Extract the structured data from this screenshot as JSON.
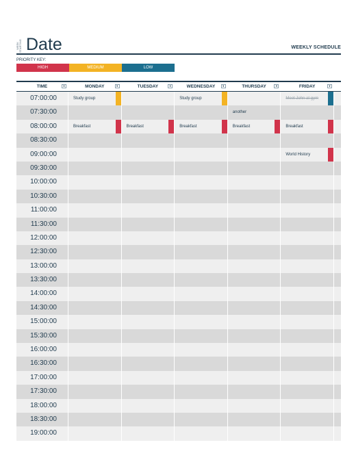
{
  "header": {
    "week_starting": "WEEK STARTING",
    "date_title": "Date",
    "weekly_title": "WEEKLY SCHEDULE"
  },
  "priority": {
    "label": "PRIORITY KEY:",
    "high": "HIGH",
    "medium": "MEDIUM",
    "low": "LOW"
  },
  "colors": {
    "navy": "#1f3a4d",
    "high": "#d1344b",
    "medium": "#f3b324",
    "low": "#1c6f8f",
    "row_light": "#efefef",
    "row_dark": "#d9d9d9"
  },
  "columns": [
    "TIME",
    "MONDAY",
    "TUESDAY",
    "WEDNESDAY",
    "THURSDAY",
    "FRIDAY"
  ],
  "rows": [
    {
      "time": "07:00:00",
      "cells": [
        {
          "text": "Study group",
          "priority": "medium"
        },
        {
          "text": ""
        },
        {
          "text": "Study group",
          "priority": "medium"
        },
        {
          "text": ""
        },
        {
          "text": "Meet John at gym",
          "priority": "low",
          "done": true
        }
      ]
    },
    {
      "time": "07:30:00",
      "cells": [
        {
          "text": ""
        },
        {
          "text": ""
        },
        {
          "text": ""
        },
        {
          "text": "another"
        },
        {
          "text": ""
        }
      ]
    },
    {
      "time": "08:00:00",
      "cells": [
        {
          "text": "Breakfast",
          "priority": "high"
        },
        {
          "text": "Breakfast",
          "priority": "high"
        },
        {
          "text": "Breakfast",
          "priority": "high"
        },
        {
          "text": "Breakfast",
          "priority": "high"
        },
        {
          "text": "Breakfast",
          "priority": "high"
        }
      ]
    },
    {
      "time": "08:30:00",
      "cells": [
        {
          "text": ""
        },
        {
          "text": ""
        },
        {
          "text": ""
        },
        {
          "text": ""
        },
        {
          "text": ""
        }
      ]
    },
    {
      "time": "09:00:00",
      "cells": [
        {
          "text": ""
        },
        {
          "text": ""
        },
        {
          "text": ""
        },
        {
          "text": ""
        },
        {
          "text": "World History",
          "priority": "high"
        }
      ]
    },
    {
      "time": "09:30:00",
      "cells": [
        {
          "text": ""
        },
        {
          "text": ""
        },
        {
          "text": ""
        },
        {
          "text": ""
        },
        {
          "text": ""
        }
      ]
    },
    {
      "time": "10:00:00",
      "cells": [
        {
          "text": ""
        },
        {
          "text": ""
        },
        {
          "text": ""
        },
        {
          "text": ""
        },
        {
          "text": ""
        }
      ]
    },
    {
      "time": "10:30:00",
      "cells": [
        {
          "text": ""
        },
        {
          "text": ""
        },
        {
          "text": ""
        },
        {
          "text": ""
        },
        {
          "text": ""
        }
      ]
    },
    {
      "time": "11:00:00",
      "cells": [
        {
          "text": ""
        },
        {
          "text": ""
        },
        {
          "text": ""
        },
        {
          "text": ""
        },
        {
          "text": ""
        }
      ]
    },
    {
      "time": "11:30:00",
      "cells": [
        {
          "text": ""
        },
        {
          "text": ""
        },
        {
          "text": ""
        },
        {
          "text": ""
        },
        {
          "text": ""
        }
      ]
    },
    {
      "time": "12:00:00",
      "cells": [
        {
          "text": ""
        },
        {
          "text": ""
        },
        {
          "text": ""
        },
        {
          "text": ""
        },
        {
          "text": ""
        }
      ]
    },
    {
      "time": "12:30:00",
      "cells": [
        {
          "text": ""
        },
        {
          "text": ""
        },
        {
          "text": ""
        },
        {
          "text": ""
        },
        {
          "text": ""
        }
      ]
    },
    {
      "time": "13:00:00",
      "cells": [
        {
          "text": ""
        },
        {
          "text": ""
        },
        {
          "text": ""
        },
        {
          "text": ""
        },
        {
          "text": ""
        }
      ]
    },
    {
      "time": "13:30:00",
      "cells": [
        {
          "text": ""
        },
        {
          "text": ""
        },
        {
          "text": ""
        },
        {
          "text": ""
        },
        {
          "text": ""
        }
      ]
    },
    {
      "time": "14:00:00",
      "cells": [
        {
          "text": ""
        },
        {
          "text": ""
        },
        {
          "text": ""
        },
        {
          "text": ""
        },
        {
          "text": ""
        }
      ]
    },
    {
      "time": "14:30:00",
      "cells": [
        {
          "text": ""
        },
        {
          "text": ""
        },
        {
          "text": ""
        },
        {
          "text": ""
        },
        {
          "text": ""
        }
      ]
    },
    {
      "time": "15:00:00",
      "cells": [
        {
          "text": ""
        },
        {
          "text": ""
        },
        {
          "text": ""
        },
        {
          "text": ""
        },
        {
          "text": ""
        }
      ]
    },
    {
      "time": "15:30:00",
      "cells": [
        {
          "text": ""
        },
        {
          "text": ""
        },
        {
          "text": ""
        },
        {
          "text": ""
        },
        {
          "text": ""
        }
      ]
    },
    {
      "time": "16:00:00",
      "cells": [
        {
          "text": ""
        },
        {
          "text": ""
        },
        {
          "text": ""
        },
        {
          "text": ""
        },
        {
          "text": ""
        }
      ]
    },
    {
      "time": "16:30:00",
      "cells": [
        {
          "text": ""
        },
        {
          "text": ""
        },
        {
          "text": ""
        },
        {
          "text": ""
        },
        {
          "text": ""
        }
      ]
    },
    {
      "time": "17:00:00",
      "cells": [
        {
          "text": ""
        },
        {
          "text": ""
        },
        {
          "text": ""
        },
        {
          "text": ""
        },
        {
          "text": ""
        }
      ]
    },
    {
      "time": "17:30:00",
      "cells": [
        {
          "text": ""
        },
        {
          "text": ""
        },
        {
          "text": ""
        },
        {
          "text": ""
        },
        {
          "text": ""
        }
      ]
    },
    {
      "time": "18:00:00",
      "cells": [
        {
          "text": ""
        },
        {
          "text": ""
        },
        {
          "text": ""
        },
        {
          "text": ""
        },
        {
          "text": ""
        }
      ]
    },
    {
      "time": "18:30:00",
      "cells": [
        {
          "text": ""
        },
        {
          "text": ""
        },
        {
          "text": ""
        },
        {
          "text": ""
        },
        {
          "text": ""
        }
      ]
    },
    {
      "time": "19:00:00",
      "cells": [
        {
          "text": ""
        },
        {
          "text": ""
        },
        {
          "text": ""
        },
        {
          "text": ""
        },
        {
          "text": ""
        }
      ]
    }
  ]
}
